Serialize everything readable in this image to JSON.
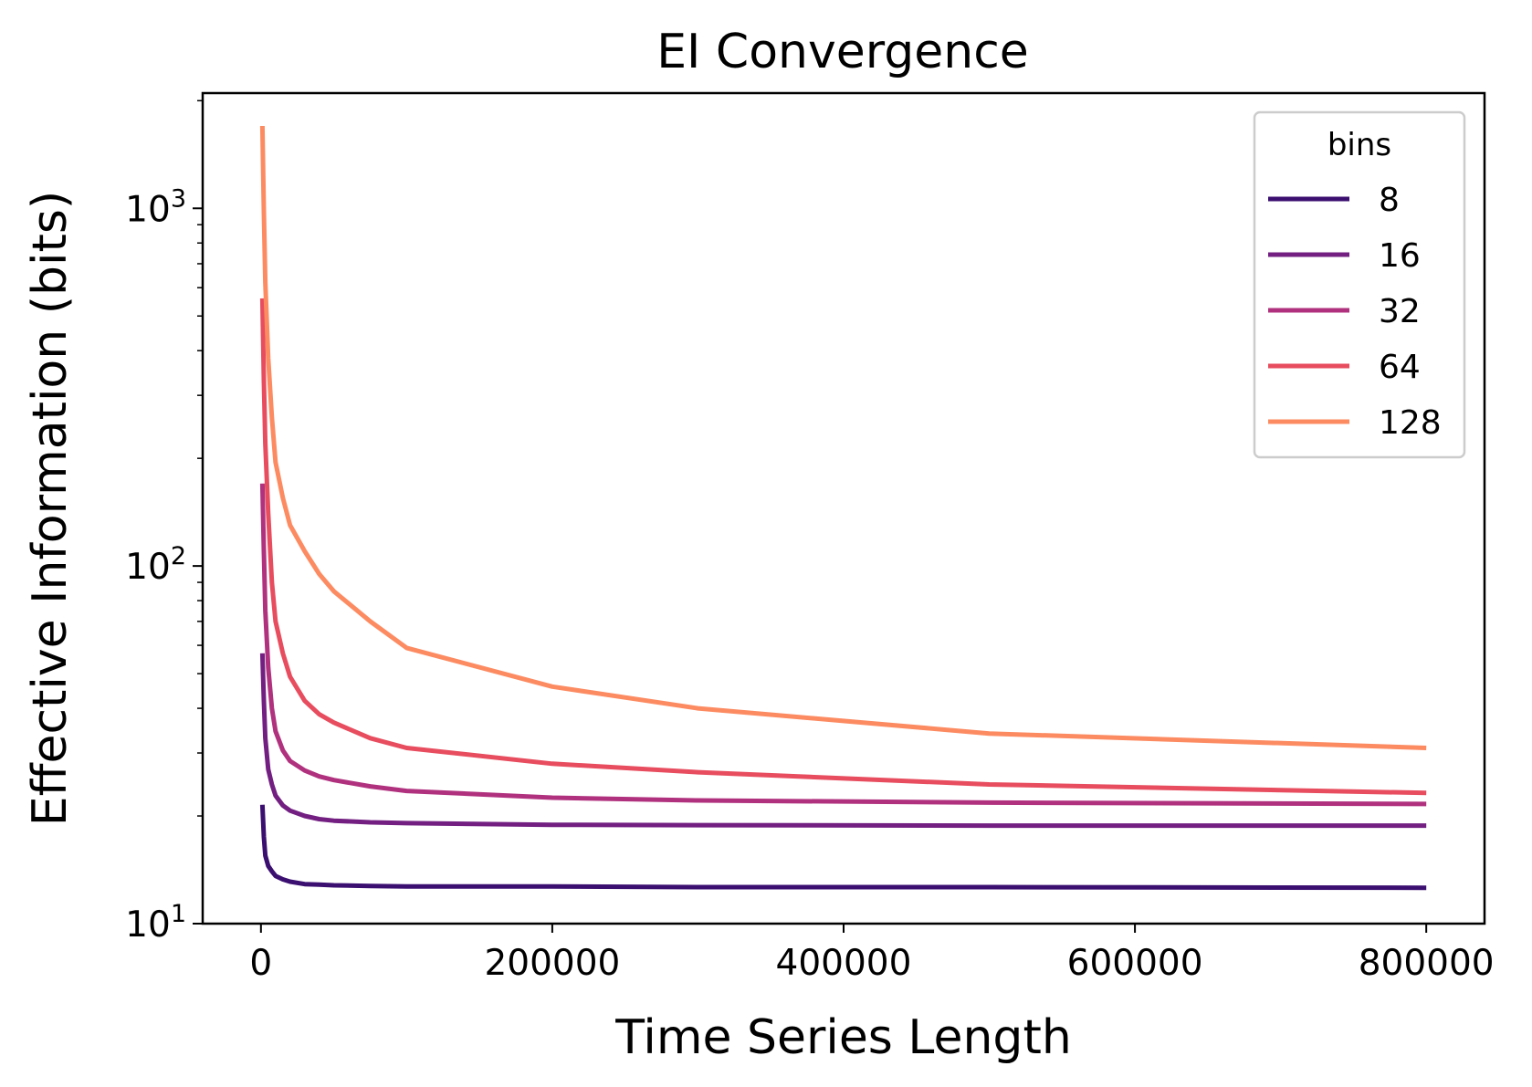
{
  "chart_data": {
    "type": "line",
    "title": "EI Convergence",
    "xlabel": "Time Series Length",
    "ylabel": "Effective Information (bits)",
    "xlim": [
      -40000,
      840000
    ],
    "ylim": [
      10,
      2100
    ],
    "yscale": "log",
    "grid": false,
    "legend": {
      "title": "bins",
      "placement": "top-right"
    },
    "xticks": [
      0,
      200000,
      400000,
      600000,
      800000
    ],
    "xtick_labels": [
      "0",
      "200000",
      "400000",
      "600000",
      "800000"
    ],
    "yticks": [
      {
        "value": 1000,
        "base": "10",
        "exp": "3"
      },
      {
        "value": 100,
        "base": "10",
        "exp": "2"
      },
      {
        "value": 10,
        "base": "10",
        "exp": "1"
      }
    ],
    "x": [
      1000,
      2000,
      3000,
      5000,
      7500,
      10000,
      15000,
      20000,
      30000,
      40000,
      50000,
      75000,
      100000,
      200000,
      300000,
      500000,
      800000
    ],
    "series": [
      {
        "name": "8",
        "color": "#3b0f70",
        "values": [
          21.5,
          17.5,
          15.5,
          14.5,
          14.0,
          13.6,
          13.3,
          13.1,
          12.9,
          12.85,
          12.8,
          12.75,
          12.7,
          12.7,
          12.65,
          12.65,
          12.6
        ]
      },
      {
        "name": "16",
        "color": "#721f81",
        "values": [
          57,
          42,
          33,
          27,
          24.5,
          22.8,
          21.4,
          20.7,
          20.0,
          19.6,
          19.4,
          19.2,
          19.1,
          18.9,
          18.85,
          18.8,
          18.8
        ]
      },
      {
        "name": "32",
        "color": "#b0317e",
        "values": [
          170,
          110,
          75,
          52,
          40,
          34.5,
          30.5,
          28.5,
          26.8,
          25.8,
          25.2,
          24.2,
          23.5,
          22.5,
          22.1,
          21.8,
          21.6
        ]
      },
      {
        "name": "64",
        "color": "#e74d5e",
        "values": [
          560,
          330,
          220,
          140,
          90,
          70,
          57,
          49,
          42,
          38.5,
          36.5,
          33,
          31,
          28,
          26.5,
          24.5,
          23.2
        ]
      },
      {
        "name": "128",
        "color": "#fc8b62",
        "values": [
          1700,
          980,
          620,
          380,
          260,
          195,
          155,
          130,
          110,
          95,
          85,
          70,
          59,
          46,
          40,
          34,
          31
        ]
      }
    ]
  }
}
